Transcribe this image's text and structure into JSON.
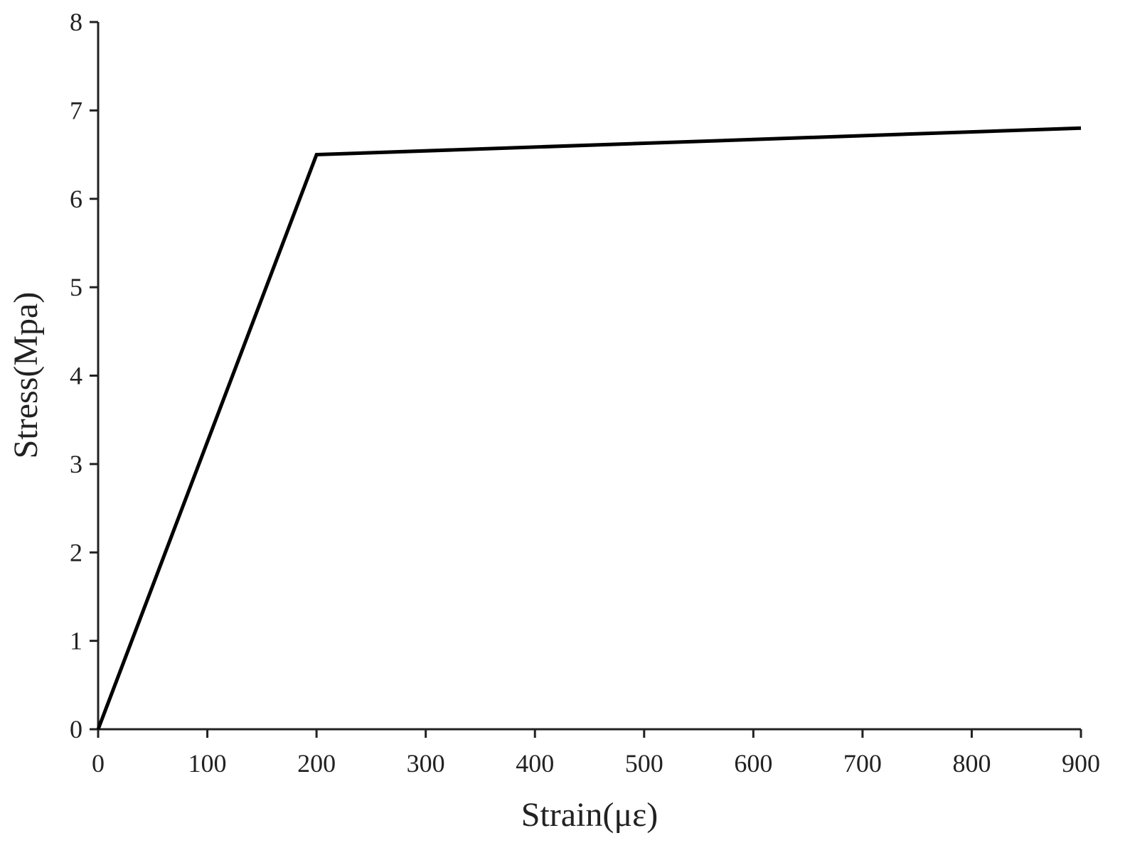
{
  "chart_data": {
    "type": "line",
    "x_label": "Strain(με)",
    "y_label": "Stress(Mpa)",
    "x": [
      0,
      200,
      900
    ],
    "series": [
      {
        "color": "#000000",
        "values": [
          0,
          6.5,
          6.8
        ]
      }
    ],
    "xlim": [
      0,
      900
    ],
    "xticks": [
      0,
      100,
      200,
      300,
      400,
      500,
      600,
      700,
      800,
      900
    ],
    "ylim": [
      0,
      8
    ],
    "yticks": [
      0,
      1,
      2,
      3,
      4,
      5,
      6,
      7,
      8
    ],
    "grid": false
  }
}
